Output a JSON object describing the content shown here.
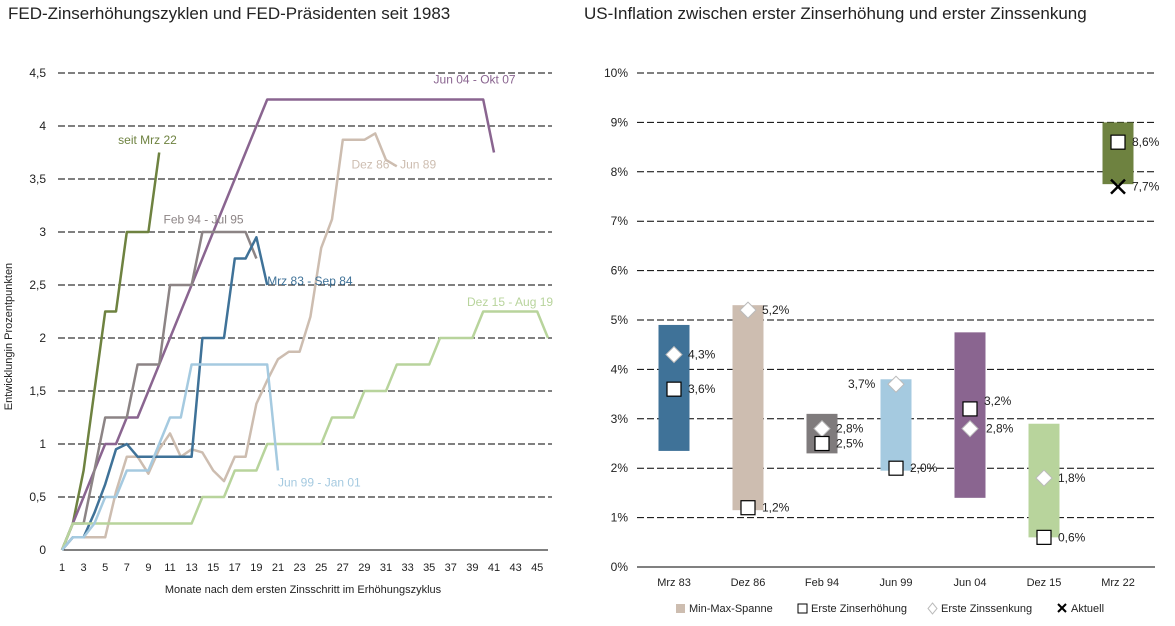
{
  "left_chart": {
    "title": "FED-Zinserhöhungszyklen und FED-Präsidenten seit 1983",
    "chart_data": {
      "type": "line",
      "xlabel": "Monate nach dem ersten Zinsschritt im Erhöhungszyklus",
      "ylabel": "Entwicklungin Prozentpunkten",
      "xlim": [
        1,
        46
      ],
      "ylim": [
        0,
        4.5
      ],
      "x_ticks": [
        "1",
        "3",
        "5",
        "7",
        "9",
        "11",
        "13",
        "15",
        "17",
        "19",
        "21",
        "23",
        "25",
        "27",
        "29",
        "31",
        "33",
        "35",
        "37",
        "39",
        "41",
        "43",
        "45"
      ],
      "y_ticks": [
        "0",
        "0,5",
        "1",
        "1,5",
        "2",
        "2,5",
        "3",
        "3,5",
        "4",
        "4,5"
      ],
      "grid": "horizontal dashed",
      "series": [
        {
          "name": "seit Mrz 22",
          "color": "#6e8240",
          "x": [
            1,
            2,
            3,
            4,
            5,
            6,
            7,
            8,
            9,
            10
          ],
          "y": [
            0,
            0.25,
            0.75,
            1.5,
            2.25,
            2.25,
            3.0,
            3.0,
            3.0,
            3.75
          ],
          "label_at": [
            6.2,
            3.83
          ]
        },
        {
          "name": "Jun 04 - Okt 07",
          "color": "#8a6590",
          "x": [
            1,
            2,
            3,
            4,
            5,
            6,
            7,
            8,
            9,
            10,
            11,
            12,
            13,
            14,
            15,
            16,
            17,
            18,
            19,
            20,
            21,
            22,
            23,
            24,
            25,
            26,
            40,
            41
          ],
          "y": [
            0,
            0.25,
            0.5,
            0.75,
            1.0,
            1.0,
            1.25,
            1.25,
            1.5,
            1.75,
            2.0,
            2.25,
            2.5,
            2.75,
            3.0,
            3.25,
            3.5,
            3.75,
            4.0,
            4.25,
            4.25,
            4.25,
            4.25,
            4.25,
            4.25,
            4.25,
            4.25,
            3.75
          ],
          "label_at": [
            35.4,
            4.4
          ]
        },
        {
          "name": "Dez 86 - Jun 89",
          "color": "#cdbdb0",
          "x": [
            1,
            2,
            3,
            4,
            5,
            6,
            7,
            8,
            9,
            10,
            11,
            12,
            13,
            14,
            15,
            16,
            17,
            18,
            19,
            20,
            21,
            22,
            23,
            24,
            25,
            26,
            27,
            28,
            29,
            30,
            31,
            32
          ],
          "y": [
            0,
            0.12,
            0.12,
            0.12,
            0.12,
            0.55,
            0.88,
            0.88,
            0.72,
            0.95,
            1.1,
            0.88,
            0.95,
            0.92,
            0.75,
            0.65,
            0.88,
            0.88,
            1.38,
            1.6,
            1.8,
            1.87,
            1.87,
            2.2,
            2.85,
            3.12,
            3.87,
            3.87,
            3.87,
            3.93,
            3.68,
            3.62
          ],
          "label_at": [
            27.8,
            3.6
          ]
        },
        {
          "name": "Feb 94 - Jul 95",
          "color": "#8c8485",
          "x": [
            1,
            2,
            3,
            4,
            5,
            6,
            7,
            8,
            9,
            10,
            11,
            12,
            13,
            14,
            15,
            16,
            17,
            18,
            19
          ],
          "y": [
            0,
            0.25,
            0.25,
            0.75,
            1.25,
            1.25,
            1.25,
            1.75,
            1.75,
            1.75,
            2.5,
            2.5,
            2.5,
            3.0,
            3.0,
            3.0,
            3.0,
            3.0,
            2.75
          ],
          "label_at": [
            10.4,
            3.08
          ]
        },
        {
          "name": "Mrz 83 - Sep 84",
          "color": "#3f7298",
          "x": [
            1,
            2,
            3,
            4,
            5,
            6,
            7,
            8,
            9,
            10,
            11,
            12,
            13,
            14,
            15,
            16,
            17,
            18,
            19,
            20
          ],
          "y": [
            0,
            0.12,
            0.12,
            0.35,
            0.62,
            0.95,
            1.0,
            0.88,
            0.88,
            0.88,
            0.88,
            0.88,
            0.88,
            2.0,
            2.0,
            2.0,
            2.75,
            2.75,
            2.95,
            2.5
          ],
          "label_at": [
            20.0,
            2.5
          ]
        },
        {
          "name": "Dez 15 - Aug 19",
          "color": "#b8d49c",
          "x": [
            1,
            2,
            3,
            4,
            5,
            6,
            7,
            8,
            9,
            10,
            11,
            12,
            13,
            14,
            15,
            16,
            17,
            18,
            19,
            20,
            21,
            22,
            23,
            24,
            25,
            26,
            27,
            28,
            29,
            30,
            31,
            32,
            33,
            34,
            35,
            36,
            37,
            38,
            39,
            40,
            41,
            42,
            43,
            44,
            45,
            46
          ],
          "y": [
            0,
            0.25,
            0.25,
            0.25,
            0.25,
            0.25,
            0.25,
            0.25,
            0.25,
            0.25,
            0.25,
            0.25,
            0.25,
            0.5,
            0.5,
            0.5,
            0.75,
            0.75,
            0.75,
            1.0,
            1.0,
            1.0,
            1.0,
            1.0,
            1.0,
            1.25,
            1.25,
            1.25,
            1.5,
            1.5,
            1.5,
            1.75,
            1.75,
            1.75,
            1.75,
            2.0,
            2.0,
            2.0,
            2.0,
            2.25,
            2.25,
            2.25,
            2.25,
            2.25,
            2.25,
            2.0
          ],
          "label_at": [
            38.5,
            2.3
          ]
        },
        {
          "name": "Jun 99 - Jan 01",
          "color": "#a5cae0",
          "x": [
            1,
            2,
            3,
            4,
            5,
            6,
            7,
            8,
            9,
            10,
            11,
            12,
            13,
            14,
            15,
            16,
            17,
            18,
            19,
            20,
            21
          ],
          "y": [
            0,
            0.12,
            0.12,
            0.25,
            0.5,
            0.5,
            0.75,
            0.75,
            0.75,
            1.0,
            1.25,
            1.25,
            1.75,
            1.75,
            1.75,
            1.75,
            1.75,
            1.75,
            1.75,
            1.75,
            0.75
          ],
          "label_at": [
            21.0,
            0.6
          ]
        }
      ]
    }
  },
  "right_chart": {
    "title": "US-Inflation zwischen erster Zinserhöhung und erster Zinssenkung",
    "chart_data": {
      "type": "bar",
      "categories": [
        "Mrz 83",
        "Dez 86",
        "Feb 94",
        "Jun 99",
        "Jun 04",
        "Dez 15",
        "Mrz 22"
      ],
      "ylim": [
        0,
        10
      ],
      "y_ticks": [
        "0%",
        "1%",
        "2%",
        "3%",
        "4%",
        "5%",
        "6%",
        "7%",
        "8%",
        "9%",
        "10%"
      ],
      "grid": "horizontal dashed",
      "range_min": [
        2.35,
        1.15,
        2.3,
        1.95,
        1.4,
        0.6,
        7.75
      ],
      "range_max": [
        4.9,
        5.3,
        3.1,
        3.8,
        4.75,
        2.9,
        9.0
      ],
      "colors": [
        "#3f7298",
        "#cdbdb0",
        "#7f7b7c",
        "#a5cae0",
        "#8a6590",
        "#b8d49c",
        "#6e8240"
      ],
      "series": [
        {
          "name": "Erste Zinserhöhung",
          "values": [
            3.6,
            1.2,
            2.5,
            2.0,
            3.2,
            0.6,
            8.6
          ],
          "labels": [
            "3,6%",
            "1,2%",
            "2,5%",
            "2,0%",
            "3,2%",
            "0,6%",
            "8,6%"
          ]
        },
        {
          "name": "Erste Zinssenkung",
          "values": [
            4.3,
            5.2,
            2.8,
            3.7,
            2.8,
            1.8,
            null
          ],
          "labels": [
            "4,3%",
            "5,2%",
            "2,8%",
            "3,7%",
            "2,8%",
            "1,8%",
            ""
          ]
        },
        {
          "name": "Aktuell",
          "values": [
            null,
            null,
            null,
            null,
            null,
            null,
            7.7
          ],
          "labels": [
            "",
            "",
            "",
            "",
            "",
            "",
            "7,7%"
          ]
        }
      ],
      "legend": [
        {
          "label": "Min-Max-Spanne",
          "marker": "square-fill",
          "color": "#cdbdb0"
        },
        {
          "label": "Erste Zinserhöhung",
          "marker": "square-open"
        },
        {
          "label": "Erste Zinssenkung",
          "marker": "diamond-open"
        },
        {
          "label": "Aktuell",
          "marker": "x"
        }
      ],
      "legend_position": "bottom"
    }
  }
}
